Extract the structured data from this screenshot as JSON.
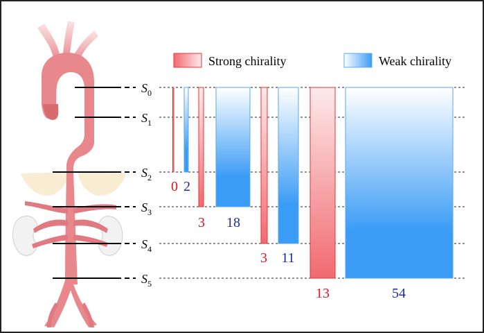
{
  "legend": {
    "strong_label": "Strong chirality",
    "weak_label": "Weak chirality"
  },
  "colors": {
    "strong_edge": "#e0363a",
    "strong_fill_top": "#fdeaea",
    "strong_fill_bottom": "#f06a70",
    "weak_edge": "#5aa8ea",
    "weak_fill_top": "#ffffff",
    "weak_fill_bottom": "#3b9cf5",
    "red_text": "#e0141e",
    "blue_text": "#1a2aa8",
    "aorta": "#e8878c",
    "aorta_dark": "#d96a70",
    "kidney": "#f2f2f2",
    "adrenal": "#f5e6c4"
  },
  "sections": [
    {
      "label": "S",
      "subscript": "0"
    },
    {
      "label": "S",
      "subscript": "1"
    },
    {
      "label": "S",
      "subscript": "2"
    },
    {
      "label": "S",
      "subscript": "3"
    },
    {
      "label": "S",
      "subscript": "4"
    },
    {
      "label": "S",
      "subscript": "5"
    }
  ],
  "chart_data": {
    "type": "bar",
    "categories": [
      "S0–S2",
      "S0–S3",
      "S0–S4",
      "S0–S5"
    ],
    "series": [
      {
        "name": "Strong chirality",
        "values": [
          0,
          3,
          3,
          13
        ]
      },
      {
        "name": "Weak chirality",
        "values": [
          2,
          18,
          11,
          54
        ]
      }
    ]
  },
  "count_labels": {
    "g2_strong": "0",
    "g2_weak": "2",
    "g3_strong": "3",
    "g3_weak": "18",
    "g4_strong": "3",
    "g4_weak": "11",
    "g5_strong": "13",
    "g5_weak": "54"
  }
}
